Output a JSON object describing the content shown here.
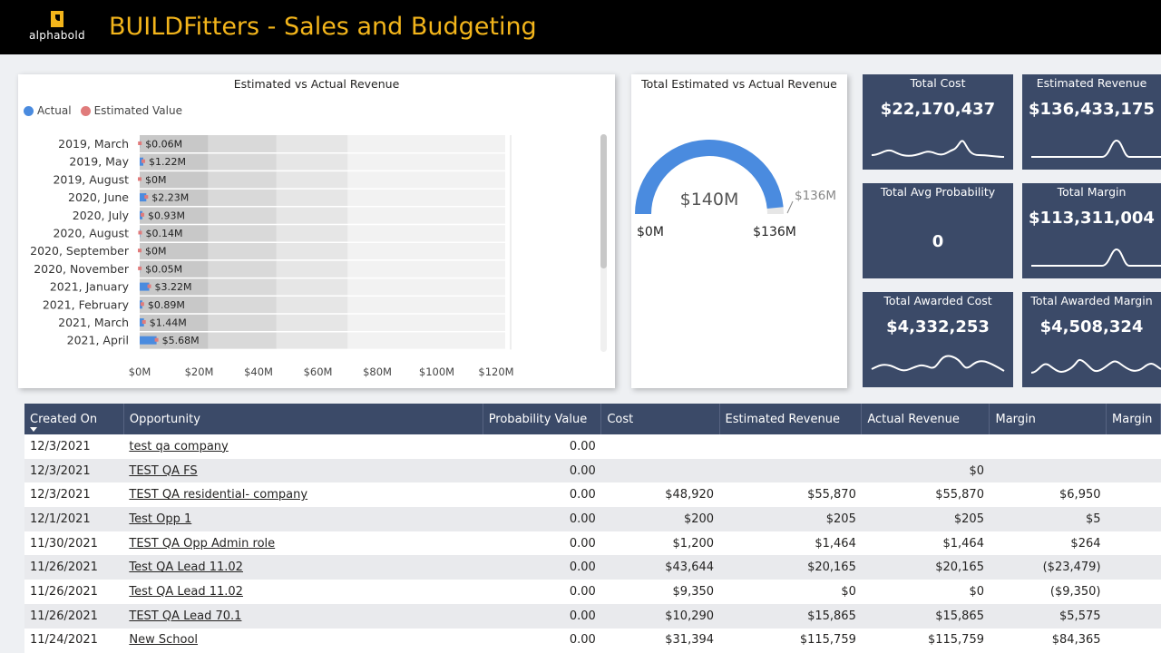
{
  "header": {
    "logo_text": "alphabold",
    "title": "BUILDFitters - Sales and Budgeting"
  },
  "colors": {
    "topbar": "#000000",
    "title": "#f3b51b",
    "kpi_bg": "#3b4a68",
    "actual": "#4a8bdf",
    "estimated": "#e07b7b"
  },
  "bar_chart": {
    "title": "Estimated vs Actual Revenue",
    "legend_actual": "Actual",
    "legend_estimated": "Estimated Value",
    "x_ticks": [
      "$0M",
      "$20M",
      "$40M",
      "$60M",
      "$80M",
      "$100M",
      "$120M"
    ]
  },
  "gauge": {
    "title": "Total Estimated vs Actual Revenue",
    "center_label": "$140M",
    "min_label": "$0M",
    "max_label": "$136M",
    "target_label": "$136M",
    "fill_fraction": 0.97
  },
  "kpis": [
    {
      "title": "Total Cost",
      "value": "$22,170,437"
    },
    {
      "title": "Estimated Revenue",
      "value": "$136,433,175"
    },
    {
      "title": "Total Avg Probability",
      "value": "0"
    },
    {
      "title": "Total Margin",
      "value": "$113,311,004"
    },
    {
      "title": "Total Awarded Cost",
      "value": "$4,332,253"
    },
    {
      "title": "Total Awarded Margin",
      "value": "$4,508,324"
    }
  ],
  "table": {
    "columns": [
      "Created On",
      "Opportunity",
      "Probability Value",
      "Cost",
      "Estimated Revenue",
      "Actual Revenue",
      "Margin",
      "Margin"
    ],
    "rows": [
      [
        "12/3/2021",
        "test qa company",
        "0.00",
        "",
        "",
        "",
        "",
        ""
      ],
      [
        "12/3/2021",
        "TEST QA FS",
        "0.00",
        "",
        "",
        "$0",
        "",
        ""
      ],
      [
        "12/3/2021",
        "TEST QA residential- company",
        "0.00",
        "$48,920",
        "$55,870",
        "$55,870",
        "$6,950",
        ""
      ],
      [
        "12/1/2021",
        "Test Opp 1",
        "0.00",
        "$200",
        "$205",
        "$205",
        "$5",
        ""
      ],
      [
        "11/30/2021",
        "TEST QA Opp Admin role",
        "0.00",
        "$1,200",
        "$1,464",
        "$1,464",
        "$264",
        ""
      ],
      [
        "11/26/2021",
        "Test QA Lead 11.02",
        "0.00",
        "$43,644",
        "$20,165",
        "$20,165",
        "($23,479)",
        ""
      ],
      [
        "11/26/2021",
        "Test QA Lead 11.02",
        "0.00",
        "$9,350",
        "$0",
        "$0",
        "($9,350)",
        ""
      ],
      [
        "11/26/2021",
        "TEST QA Lead 70.1",
        "0.00",
        "$10,290",
        "$15,865",
        "$15,865",
        "$5,575",
        ""
      ],
      [
        "11/24/2021",
        "New School",
        "0.00",
        "$31,394",
        "$115,759",
        "$115,759",
        "$84,365",
        ""
      ]
    ]
  },
  "chart_data": {
    "type": "bar",
    "orientation": "horizontal",
    "title": "Estimated vs Actual Revenue",
    "categories": [
      "2019, March",
      "2019, May",
      "2019, August",
      "2020, June",
      "2020, July",
      "2020, August",
      "2020, September",
      "2020, November",
      "2021, January",
      "2021, February",
      "2021, March",
      "2021, April"
    ],
    "series": [
      {
        "name": "Actual",
        "values": [
          0.06,
          1.22,
          0,
          2.23,
          0.93,
          0.14,
          0,
          0.05,
          3.22,
          0.89,
          1.44,
          5.68
        ]
      },
      {
        "name": "Estimated Value",
        "values": [
          0.06,
          1.22,
          0,
          2.23,
          0.93,
          0.14,
          0,
          0.05,
          3.22,
          0.89,
          1.44,
          5.68
        ]
      }
    ],
    "data_labels": [
      "$0.06M",
      "$1.22M",
      "$0M",
      "$2.23M",
      "$0.93M",
      "$0.14M",
      "$0M",
      "$0.05M",
      "$3.22M",
      "$0.89M",
      "$1.44M",
      "$5.68M"
    ],
    "xlim": [
      0,
      120
    ],
    "legend_position": "top-left"
  }
}
